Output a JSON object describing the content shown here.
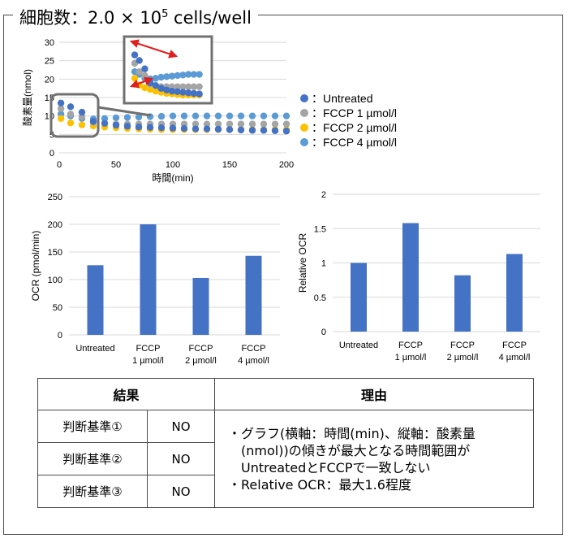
{
  "title": {
    "prefix": "細胞数：2.0 × 10",
    "exponent": "5",
    "suffix": " cells/well"
  },
  "colors": {
    "untreated": "#4472C4",
    "fccp1": "#A5A5A5",
    "fccp2": "#FFC000",
    "fccp4": "#5B9BD5",
    "bar": "#4472C4",
    "callout": "#E02020"
  },
  "chart_data": [
    {
      "type": "scatter",
      "xlabel": "時間(min)",
      "ylabel": "酸素量(nmol)",
      "xlim": [
        0,
        200
      ],
      "ylim": [
        0,
        30
      ],
      "xticks": [
        0,
        50,
        100,
        150,
        200
      ],
      "yticks": [
        0,
        5,
        10,
        15,
        20,
        25,
        30
      ],
      "grid": "horizontal",
      "legend_position": "right",
      "inset_zoom": "magnified view of the 0–30 min region",
      "series": [
        {
          "name": "：Untreated",
          "x": [
            1.5,
            10,
            20,
            30,
            40,
            50,
            60,
            70,
            80,
            90,
            100,
            110,
            120,
            130,
            140,
            150,
            160,
            170,
            180,
            190,
            200
          ],
          "values": [
            13.5,
            12.5,
            11,
            8.5,
            8,
            7.5,
            7.2,
            7,
            6.9,
            6.8,
            6.7,
            6.6,
            6.5,
            6.5,
            6.4,
            6.3,
            6.2,
            6.1,
            6.1,
            6,
            5.9
          ]
        },
        {
          "name": "：FCCP 1 µmol/l",
          "x": [
            1.5,
            10,
            20,
            30,
            40,
            50,
            60,
            70,
            80,
            90,
            100,
            110,
            120,
            130,
            140,
            150,
            160,
            170,
            180,
            190,
            200
          ],
          "values": [
            12,
            10.5,
            9.8,
            8.3,
            8,
            7.8,
            7.8,
            7.8,
            7.8,
            7.8,
            7.8,
            7.8,
            7.8,
            7.8,
            7.8,
            7.8,
            7.8,
            7.8,
            7.8,
            7.8,
            7.8
          ]
        },
        {
          "name": "：FCCP 2 µmol/l",
          "x": [
            1.5,
            10,
            20,
            30,
            40,
            50,
            60,
            70,
            80,
            90,
            100,
            110,
            120,
            130,
            140,
            150,
            160,
            170,
            180,
            190,
            200
          ],
          "values": [
            9.3,
            8.1,
            7.6,
            7.3,
            7,
            6.8,
            6.6,
            6.5,
            6.4,
            6.3,
            6.3,
            6.3,
            6.3,
            6.3,
            6.3,
            6.3,
            6.3,
            6.3,
            6.3,
            6.3,
            6.3
          ]
        },
        {
          "name": "：FCCP 4 µmol/l",
          "x": [
            1.5,
            10,
            20,
            30,
            40,
            50,
            60,
            70,
            80,
            90,
            100,
            110,
            120,
            130,
            140,
            150,
            160,
            170,
            180,
            190,
            200
          ],
          "values": [
            10.5,
            10,
            9.3,
            9.2,
            9.3,
            9.5,
            9.6,
            9.7,
            9.8,
            9.9,
            10,
            10,
            10,
            10,
            10,
            10,
            10,
            10,
            10,
            10,
            10
          ]
        }
      ]
    },
    {
      "type": "bar",
      "categories": [
        [
          "Untreated"
        ],
        [
          "FCCP",
          "1 µmol/l"
        ],
        [
          "FCCP",
          "2 µmol/l"
        ],
        [
          "FCCP",
          "4 µmol/l"
        ]
      ],
      "values": [
        126,
        200,
        103,
        143
      ],
      "ylabel": "OCR (pmol/min)",
      "ylim": [
        0,
        250
      ],
      "yticks": [
        0,
        50,
        100,
        150,
        200,
        250
      ],
      "grid": "horizontal"
    },
    {
      "type": "bar",
      "categories": [
        [
          "Untreated"
        ],
        [
          "FCCP",
          "1 µmol/l"
        ],
        [
          "FCCP",
          "2 µmol/l"
        ],
        [
          "FCCP",
          "4 µmol/l"
        ]
      ],
      "values": [
        1.0,
        1.58,
        0.82,
        1.13
      ],
      "ylabel": "Relative OCR",
      "ylim": [
        0,
        2
      ],
      "yticks": [
        "0",
        "0.5",
        "1",
        "1.5",
        "2"
      ],
      "grid": "horizontal"
    }
  ],
  "table": {
    "header_result": "結果",
    "header_reason": "理由",
    "rows": [
      {
        "criterion": "判断基準①",
        "result": "NO"
      },
      {
        "criterion": "判断基準②",
        "result": "NO"
      },
      {
        "criterion": "判断基準③",
        "result": "NO"
      }
    ],
    "reason_lines": [
      "・グラフ(横軸：時間(min)、縦軸：酸素量",
      "(nmol))の傾きが最大となる時間範囲が",
      "UntreatedとFCCPで一致しない",
      "・Relative OCR：最大1.6程度"
    ]
  }
}
